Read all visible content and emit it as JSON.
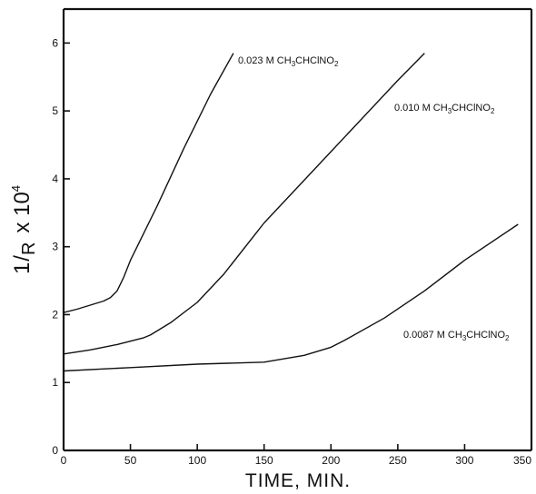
{
  "chart_data": {
    "type": "line",
    "title": "",
    "xlabel": "TIME, MIN.",
    "ylabel": "1/R x 10^4",
    "xlim": [
      0,
      350
    ],
    "ylim": [
      0,
      6.5
    ],
    "x_ticks": [
      0,
      50,
      100,
      150,
      200,
      250,
      300,
      350
    ],
    "y_ticks": [
      0,
      1,
      2,
      3,
      4,
      5,
      6
    ],
    "grid": false,
    "series": [
      {
        "name": "0.023 M CH3CHClNO2",
        "x": [
          0,
          10,
          20,
          30,
          35,
          40,
          45,
          50,
          70,
          90,
          110,
          127
        ],
        "y": [
          2.03,
          2.08,
          2.14,
          2.2,
          2.25,
          2.35,
          2.55,
          2.8,
          3.6,
          4.45,
          5.25,
          5.85
        ]
      },
      {
        "name": "0.010 M CH3CHClNO2",
        "x": [
          0,
          20,
          40,
          60,
          65,
          80,
          100,
          120,
          150,
          200,
          250,
          270
        ],
        "y": [
          1.42,
          1.48,
          1.56,
          1.66,
          1.7,
          1.88,
          2.18,
          2.6,
          3.35,
          4.4,
          5.45,
          5.85
        ]
      },
      {
        "name": "0.0087 M CH3CHClNO2",
        "x": [
          0,
          50,
          100,
          150,
          180,
          200,
          210,
          240,
          270,
          300,
          340
        ],
        "y": [
          1.17,
          1.22,
          1.27,
          1.3,
          1.4,
          1.52,
          1.62,
          1.95,
          2.35,
          2.8,
          3.33
        ]
      }
    ],
    "labels": [
      {
        "main": "0.023 M  CH",
        "sub1": "3",
        "mid": "CHClNO",
        "sub2": "2"
      },
      {
        "main": "0.010 M  CH",
        "sub1": "3",
        "mid": "CHClNO",
        "sub2": "2"
      },
      {
        "main": "0.0087 M  CH",
        "sub1": "3",
        "mid": "CHClNO",
        "sub2": "2"
      }
    ],
    "ylabel_parts": {
      "one": "1",
      "r": "R",
      "times": "x 10",
      "exp": "4"
    }
  }
}
